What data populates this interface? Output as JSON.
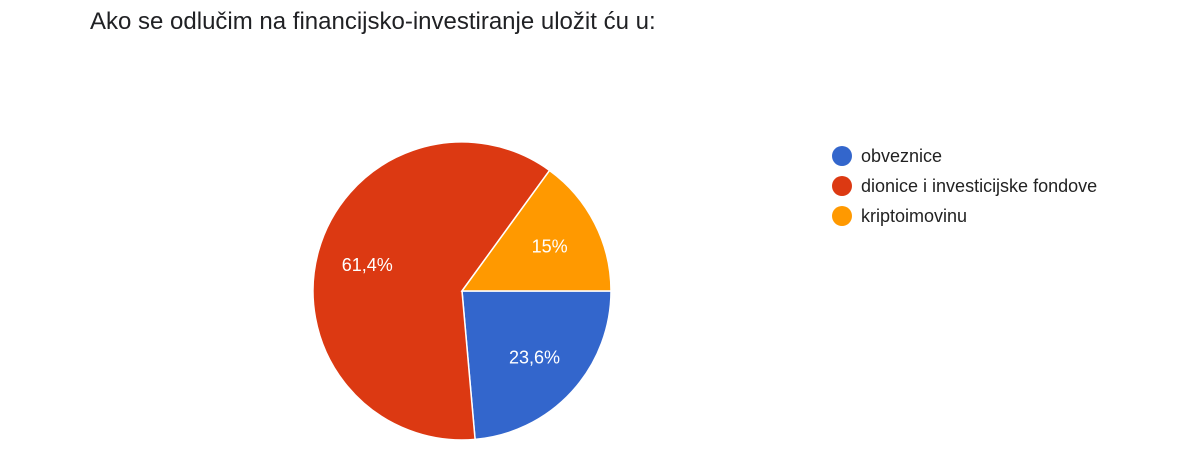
{
  "chart_data": {
    "type": "pie",
    "title": "Ako se odlučim na financijsko-investiranje uložit ću u:",
    "legend_position": "right",
    "slices": [
      {
        "label": "obveznice",
        "value": 23.6,
        "display": "23,6%",
        "color": "#3366cc"
      },
      {
        "label": "dionice i investicijske fondove",
        "value": 61.4,
        "display": "61,4%",
        "color": "#dc3912"
      },
      {
        "label": "kriptoimovinu",
        "value": 15.0,
        "display": "15%",
        "color": "#ff9900"
      }
    ]
  }
}
